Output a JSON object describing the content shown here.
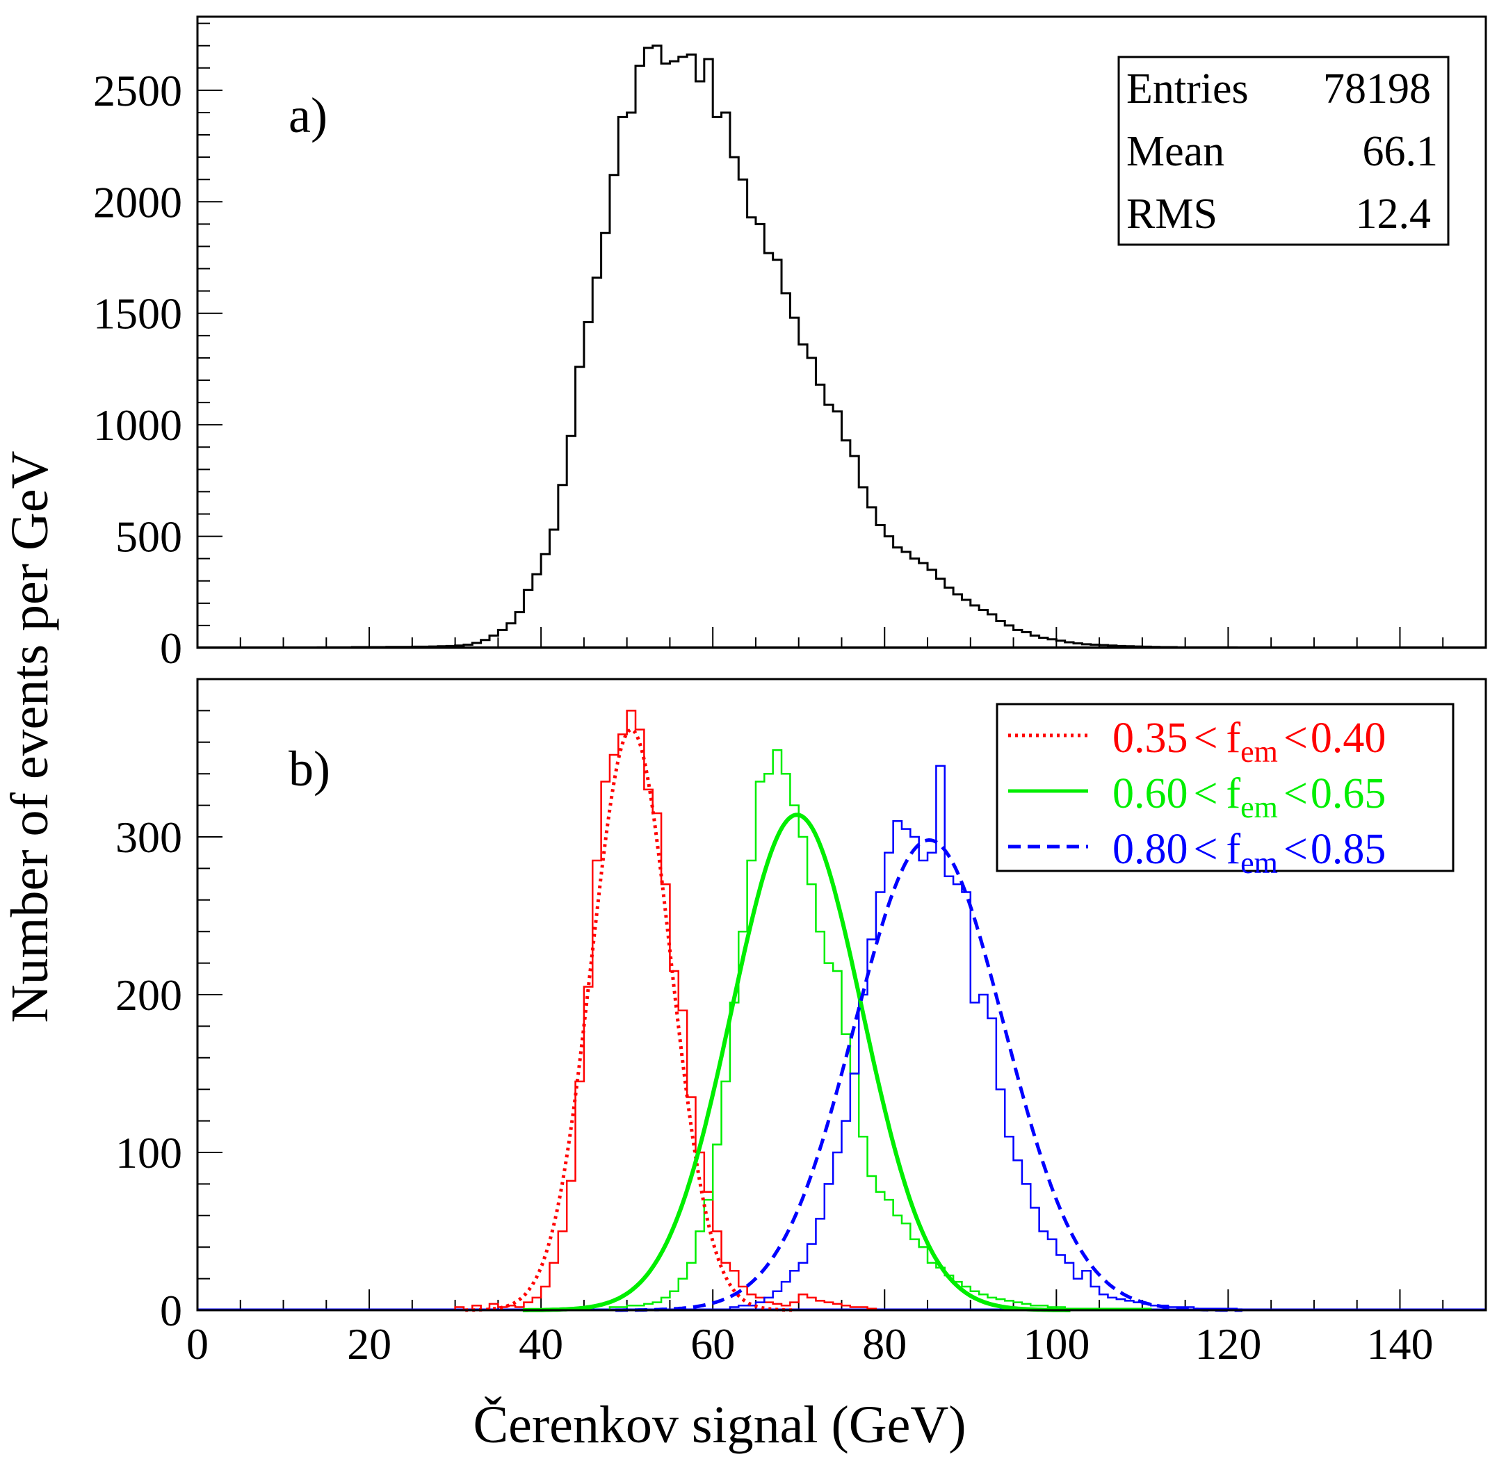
{
  "chart_data": [
    {
      "type": "histogram",
      "panel": "a)",
      "xlabel": "Čerenkov signal (GeV)",
      "ylabel": "Number of events per GeV",
      "xlim": [
        0,
        150
      ],
      "ylim": [
        0,
        2830
      ],
      "x_ticks": [
        0,
        20,
        40,
        60,
        80,
        100,
        120,
        140
      ],
      "y_ticks": [
        0,
        500,
        1000,
        1500,
        2000,
        2500
      ],
      "color": "#000000",
      "stats": {
        "rows": [
          {
            "label": "Entries",
            "value": "78198"
          },
          {
            "label": "Mean",
            "value": "66.1"
          },
          {
            "label": "RMS",
            "value": "12.4"
          }
        ]
      },
      "bin_width": 1,
      "bins_x_start": [
        14,
        15,
        16,
        17,
        18,
        19,
        20,
        21,
        22,
        23,
        24,
        25,
        26,
        27,
        28,
        29,
        30,
        31,
        32,
        33,
        34,
        35,
        36,
        37,
        38,
        39,
        40,
        41,
        42,
        43,
        44,
        45,
        46,
        47,
        48,
        49,
        50,
        51,
        52,
        53,
        54,
        55,
        56,
        57,
        58,
        59,
        60,
        61,
        62,
        63,
        64,
        65,
        66,
        67,
        68,
        69,
        70,
        71,
        72,
        73,
        74,
        75,
        76,
        77,
        78,
        79,
        80,
        81,
        82,
        83,
        84,
        85,
        86,
        87,
        88,
        89,
        90,
        91,
        92,
        93,
        94,
        95,
        96,
        97,
        98,
        99,
        100,
        101,
        102,
        103,
        104,
        105,
        106,
        107,
        108,
        109,
        110,
        111,
        112,
        113,
        114,
        115,
        116,
        117,
        118,
        119,
        120,
        121,
        122
      ],
      "counts": [
        2,
        2,
        2,
        2,
        3,
        3,
        3,
        3,
        4,
        4,
        4,
        5,
        5,
        6,
        7,
        8,
        10,
        14,
        22,
        35,
        55,
        80,
        110,
        160,
        260,
        330,
        420,
        530,
        730,
        950,
        1260,
        1460,
        1660,
        1860,
        2120,
        2380,
        2400,
        2610,
        2690,
        2700,
        2620,
        2630,
        2650,
        2660,
        2540,
        2640,
        2380,
        2400,
        2200,
        2100,
        1930,
        1900,
        1770,
        1740,
        1590,
        1480,
        1360,
        1300,
        1180,
        1090,
        1060,
        930,
        860,
        720,
        630,
        550,
        500,
        450,
        430,
        400,
        380,
        350,
        310,
        270,
        240,
        215,
        190,
        170,
        150,
        120,
        100,
        80,
        70,
        55,
        45,
        38,
        32,
        25,
        20,
        16,
        14,
        12,
        10,
        8,
        7,
        6,
        5,
        4,
        3,
        3,
        2,
        2,
        2,
        2,
        2,
        2,
        2,
        1,
        1
      ]
    },
    {
      "type": "histogram",
      "panel": "b)",
      "xlabel": "Čerenkov signal (GeV)",
      "ylabel": "Number of events per GeV",
      "xlim": [
        0,
        150
      ],
      "ylim": [
        0,
        400
      ],
      "x_ticks": [
        0,
        20,
        40,
        60,
        80,
        100,
        120,
        140
      ],
      "y_ticks": [
        0,
        100,
        200,
        300
      ],
      "bin_width": 1,
      "series": [
        {
          "legend_prefix": "0.35",
          "legend_var": "f",
          "legend_sub": "em",
          "legend_suffix": "0.40",
          "color": "#ff0000",
          "line_style": "dotted",
          "fit": {
            "mean": 50.5,
            "sigma": 4.6,
            "amplitude": 368
          },
          "bins_x_start": [
            30,
            31,
            32,
            33,
            34,
            35,
            36,
            37,
            38,
            39,
            40,
            41,
            42,
            43,
            44,
            45,
            46,
            47,
            48,
            49,
            50,
            51,
            52,
            53,
            54,
            55,
            56,
            57,
            58,
            59,
            60,
            61,
            62,
            63,
            64,
            65,
            66,
            67,
            68,
            69,
            70,
            71,
            72,
            73,
            74,
            75,
            76,
            77,
            78
          ],
          "counts": [
            2,
            0,
            3,
            0,
            4,
            2,
            3,
            2,
            5,
            8,
            15,
            30,
            50,
            82,
            145,
            205,
            285,
            335,
            352,
            365,
            380,
            368,
            330,
            315,
            270,
            215,
            190,
            135,
            100,
            75,
            50,
            30,
            25,
            15,
            10,
            8,
            5,
            4,
            3,
            5,
            10,
            8,
            6,
            5,
            4,
            3,
            2,
            2,
            1
          ]
        },
        {
          "legend_prefix": "0.60",
          "legend_var": "f",
          "legend_sub": "em",
          "legend_suffix": "0.65",
          "color": "#00ee00",
          "line_style": "solid",
          "fit": {
            "mean": 69.8,
            "sigma": 7.6,
            "amplitude": 314
          },
          "bins_x_start": [
            48,
            49,
            50,
            51,
            52,
            53,
            54,
            55,
            56,
            57,
            58,
            59,
            60,
            61,
            62,
            63,
            64,
            65,
            66,
            67,
            68,
            69,
            70,
            71,
            72,
            73,
            74,
            75,
            76,
            77,
            78,
            79,
            80,
            81,
            82,
            83,
            84,
            85,
            86,
            87,
            88,
            89,
            90,
            91,
            92,
            93,
            94,
            95,
            96,
            97,
            98,
            99,
            100,
            101,
            102,
            103,
            104,
            105,
            106,
            107,
            108,
            109,
            110
          ],
          "counts": [
            2,
            2,
            3,
            3,
            4,
            5,
            8,
            12,
            20,
            30,
            50,
            70,
            105,
            145,
            195,
            240,
            285,
            335,
            340,
            355,
            340,
            320,
            300,
            270,
            240,
            220,
            215,
            175,
            150,
            110,
            85,
            75,
            70,
            60,
            55,
            45,
            40,
            30,
            27,
            22,
            18,
            15,
            12,
            10,
            8,
            7,
            6,
            5,
            4,
            3,
            3,
            2,
            2,
            1,
            1,
            1,
            1,
            1,
            1,
            1,
            1,
            1,
            1
          ]
        },
        {
          "legend_prefix": "0.80",
          "legend_var": "f",
          "legend_sub": "em",
          "legend_suffix": "0.85",
          "color": "#0000ff",
          "line_style": "dashed",
          "fit": {
            "mean": 85.2,
            "sigma": 8.7,
            "amplitude": 298
          },
          "bins_x_start": [
            62,
            63,
            64,
            65,
            66,
            67,
            68,
            69,
            70,
            71,
            72,
            73,
            74,
            75,
            76,
            77,
            78,
            79,
            80,
            81,
            82,
            83,
            84,
            85,
            86,
            87,
            88,
            89,
            90,
            91,
            92,
            93,
            94,
            95,
            96,
            97,
            98,
            99,
            100,
            101,
            102,
            103,
            104,
            105,
            106,
            107,
            108,
            109,
            110,
            111,
            112,
            113,
            114,
            115,
            116,
            117,
            118,
            119,
            120
          ],
          "counts": [
            2,
            3,
            3,
            5,
            8,
            12,
            18,
            25,
            30,
            42,
            58,
            80,
            100,
            120,
            150,
            200,
            235,
            265,
            290,
            310,
            305,
            300,
            285,
            290,
            345,
            275,
            270,
            265,
            195,
            200,
            185,
            140,
            110,
            95,
            80,
            65,
            50,
            45,
            35,
            30,
            20,
            25,
            15,
            10,
            8,
            7,
            6,
            5,
            4,
            3,
            3,
            2,
            2,
            2,
            1,
            1,
            1,
            1,
            1
          ]
        }
      ]
    }
  ]
}
